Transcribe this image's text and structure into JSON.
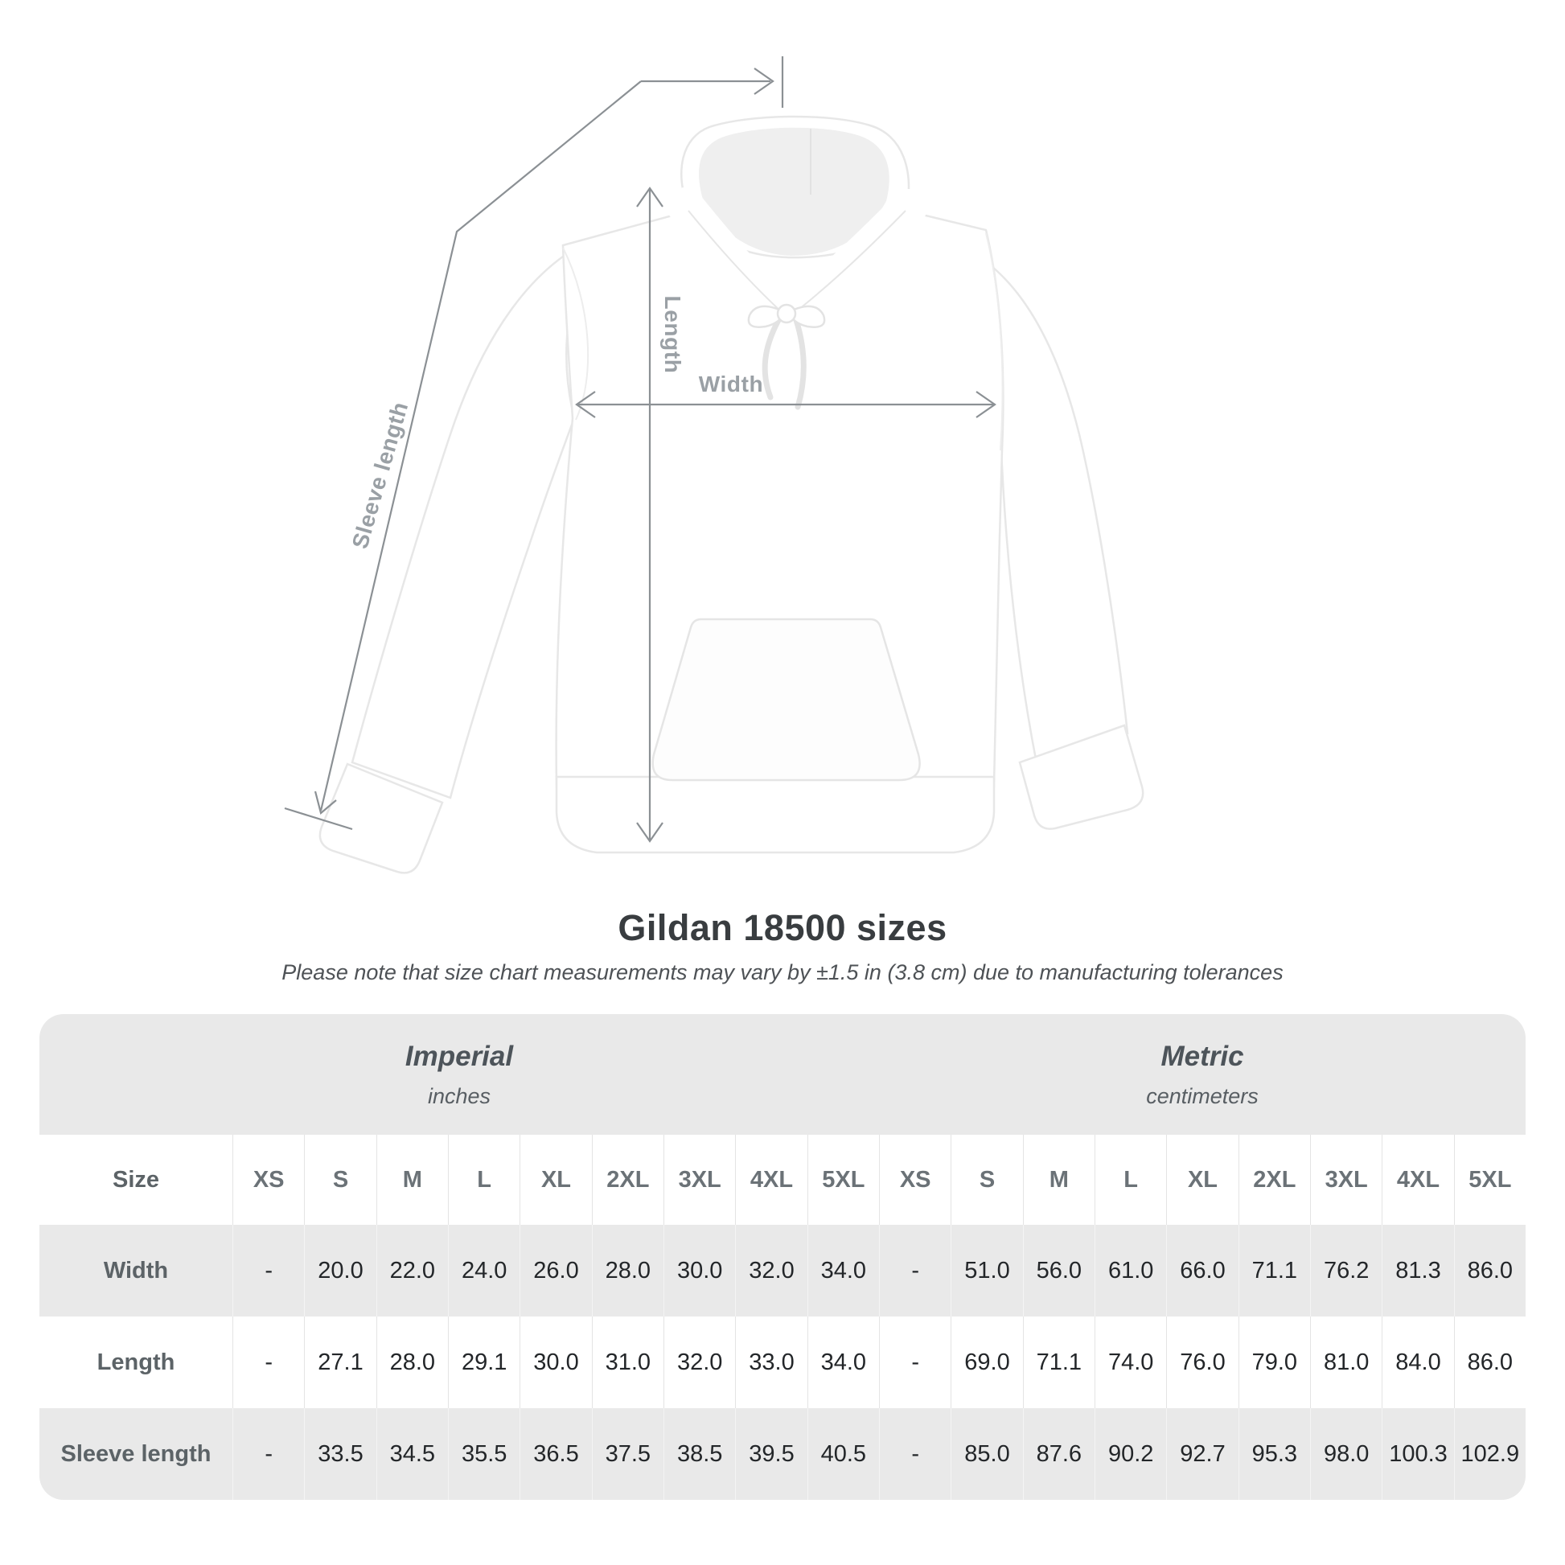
{
  "diagram": {
    "labels": {
      "length": "Length",
      "width": "Width",
      "sleeve": "Sleeve length"
    }
  },
  "main": {
    "title": "Gildan 18500 sizes",
    "subtitle": "Please note that size chart measurements may vary by ±1.5 in (3.8 cm) due to manufacturing tolerances"
  },
  "table": {
    "size_header": "Size",
    "sizes": [
      "XS",
      "S",
      "M",
      "L",
      "XL",
      "2XL",
      "3XL",
      "4XL",
      "5XL"
    ],
    "groups": [
      {
        "label": "Imperial",
        "sublabel": "inches"
      },
      {
        "label": "Metric",
        "sublabel": "centimeters"
      }
    ],
    "rows": [
      {
        "label": "Width",
        "imperial": [
          "-",
          "20.0",
          "22.0",
          "24.0",
          "26.0",
          "28.0",
          "30.0",
          "32.0",
          "34.0"
        ],
        "metric": [
          "-",
          "51.0",
          "56.0",
          "61.0",
          "66.0",
          "71.1",
          "76.2",
          "81.3",
          "86.0"
        ]
      },
      {
        "label": "Length",
        "imperial": [
          "-",
          "27.1",
          "28.0",
          "29.1",
          "30.0",
          "31.0",
          "32.0",
          "33.0",
          "34.0"
        ],
        "metric": [
          "-",
          "69.0",
          "71.1",
          "74.0",
          "76.0",
          "79.0",
          "81.0",
          "84.0",
          "86.0"
        ]
      },
      {
        "label": "Sleeve length",
        "imperial": [
          "-",
          "33.5",
          "34.5",
          "35.5",
          "36.5",
          "37.5",
          "38.5",
          "39.5",
          "40.5"
        ],
        "metric": [
          "-",
          "85.0",
          "87.6",
          "90.2",
          "92.7",
          "95.3",
          "98.0",
          "100.3",
          "102.9"
        ]
      }
    ]
  },
  "colors": {
    "table_band": "#e9e9e9",
    "arrow_gray": "#8b9094",
    "label_gray": "#9aa0a5"
  }
}
